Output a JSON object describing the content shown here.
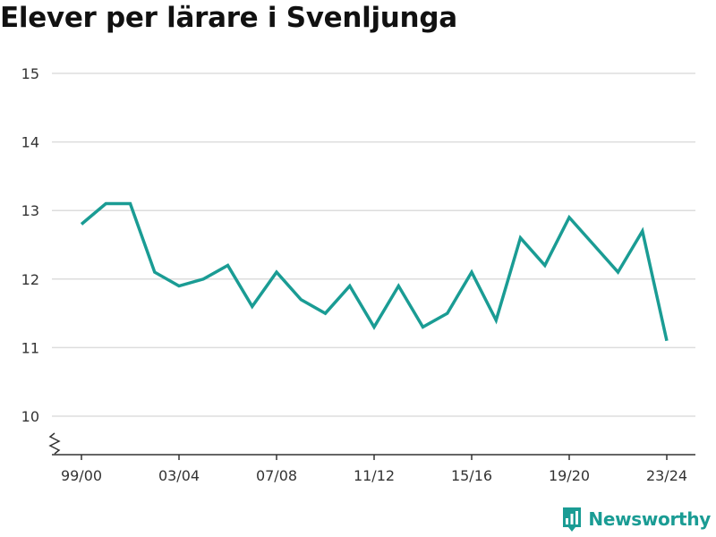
{
  "page": {
    "title": "Elever per lärare i Svenljunga"
  },
  "brand": {
    "name": "Newsworthy",
    "icon": "bar-chart-logo-icon",
    "color": "#1a9c94"
  },
  "chart_data": {
    "type": "line",
    "title": "Elever per lärare i Svenljunga",
    "xlabel": "",
    "ylabel": "",
    "ylim": [
      10,
      15
    ],
    "yticks": [
      10,
      11,
      12,
      13,
      14,
      15
    ],
    "y_axis_break": true,
    "grid": "horizontal",
    "line_color": "#1a9c94",
    "categories": [
      "99/00",
      "00/01",
      "01/02",
      "02/03",
      "03/04",
      "04/05",
      "05/06",
      "06/07",
      "07/08",
      "08/09",
      "09/10",
      "10/11",
      "11/12",
      "12/13",
      "13/14",
      "14/15",
      "15/16",
      "16/17",
      "17/18",
      "18/19",
      "19/20",
      "20/21",
      "21/22",
      "22/23",
      "23/24"
    ],
    "xtick_labels": [
      "99/00",
      "03/04",
      "07/08",
      "11/12",
      "15/16",
      "19/20",
      "23/24"
    ],
    "series": [
      {
        "values": [
          12.8,
          13.1,
          13.1,
          12.1,
          11.9,
          12.0,
          12.2,
          11.6,
          12.1,
          11.7,
          11.5,
          11.9,
          11.3,
          11.9,
          11.3,
          11.5,
          12.1,
          11.4,
          12.6,
          12.2,
          12.9,
          12.5,
          12.1,
          12.7,
          11.1
        ]
      }
    ]
  }
}
